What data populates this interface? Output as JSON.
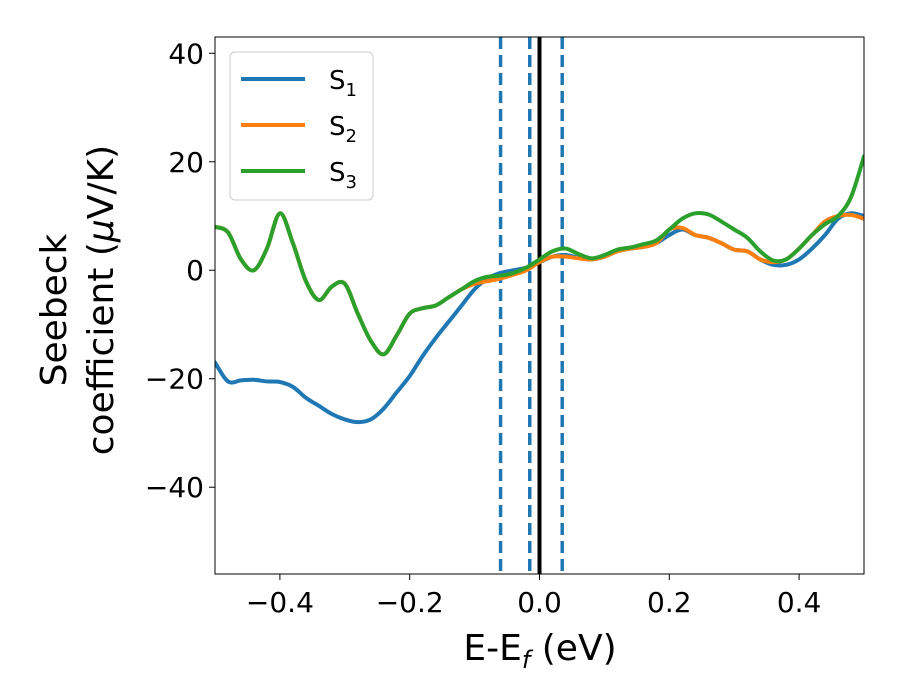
{
  "chart_data": {
    "type": "line",
    "xlabel": {
      "main": "E-E",
      "sub": "f",
      "unit": " (eV)"
    },
    "ylabel": {
      "line1": "Seebeck",
      "line2": "coefficient  (",
      "mu": "μ",
      "unit": "V/K)"
    },
    "xlim": [
      -0.5,
      0.5
    ],
    "ylim": [
      -56,
      43
    ],
    "xticks": [
      -0.4,
      -0.2,
      0.0,
      0.2,
      0.4
    ],
    "xtick_labels": [
      "−0.4",
      "−0.2",
      "0.0",
      "0.2",
      "0.4"
    ],
    "yticks": [
      -40,
      -20,
      0,
      20,
      40
    ],
    "ytick_labels": [
      "−40",
      "−20",
      "0",
      "20",
      "40"
    ],
    "grid": false,
    "legend_position": "upper-left",
    "vlines": [
      {
        "x": 0.0,
        "style": "solid",
        "color": "#000000"
      },
      {
        "x": -0.06,
        "style": "dashed",
        "color": "#1f77b4"
      },
      {
        "x": -0.015,
        "style": "dashed",
        "color": "#1f77b4"
      },
      {
        "x": 0.035,
        "style": "dashed",
        "color": "#1f77b4"
      }
    ],
    "series": [
      {
        "name": "S",
        "sub": "1",
        "color": "#1f77b4",
        "x": [
          -0.5,
          -0.48,
          -0.46,
          -0.44,
          -0.42,
          -0.4,
          -0.38,
          -0.36,
          -0.34,
          -0.32,
          -0.3,
          -0.28,
          -0.26,
          -0.24,
          -0.22,
          -0.2,
          -0.18,
          -0.16,
          -0.14,
          -0.12,
          -0.1,
          -0.08,
          -0.06,
          -0.04,
          -0.02,
          0.0,
          0.02,
          0.04,
          0.06,
          0.08,
          0.1,
          0.12,
          0.14,
          0.16,
          0.18,
          0.2,
          0.22,
          0.24,
          0.26,
          0.28,
          0.3,
          0.32,
          0.34,
          0.36,
          0.38,
          0.4,
          0.42,
          0.44,
          0.46,
          0.48,
          0.5
        ],
        "y": [
          -17,
          -20.5,
          -20.3,
          -20.2,
          -20.5,
          -20.6,
          -21.5,
          -23.5,
          -25,
          -26.5,
          -27.5,
          -28,
          -27.5,
          -25.5,
          -22.5,
          -19.5,
          -15.8,
          -12.5,
          -9.5,
          -6.5,
          -3.5,
          -1.5,
          -0.5,
          0,
          0.5,
          1.5,
          2.5,
          2.8,
          2.3,
          2.0,
          2.5,
          3.5,
          4.0,
          4.3,
          5.0,
          6.5,
          7.5,
          6.5,
          6.0,
          5.0,
          3.8,
          3.5,
          2.0,
          1.0,
          1.0,
          2.0,
          4.0,
          6.5,
          9.5,
          10.5,
          10.0
        ]
      },
      {
        "name": "S",
        "sub": "2",
        "color": "#ff7f0e",
        "x": [
          -0.5,
          -0.48,
          -0.46,
          -0.44,
          -0.42,
          -0.4,
          -0.38,
          -0.36,
          -0.34,
          -0.32,
          -0.3,
          -0.28,
          -0.26,
          -0.24,
          -0.22,
          -0.2,
          -0.18,
          -0.16,
          -0.14,
          -0.12,
          -0.1,
          -0.08,
          -0.06,
          -0.04,
          -0.02,
          0.0,
          0.02,
          0.04,
          0.06,
          0.08,
          0.1,
          0.12,
          0.14,
          0.16,
          0.18,
          0.2,
          0.22,
          0.24,
          0.26,
          0.28,
          0.3,
          0.32,
          0.34,
          0.36,
          0.38,
          0.4,
          0.42,
          0.44,
          0.46,
          0.48,
          0.5
        ],
        "y": [
          8,
          7,
          2,
          0,
          4,
          10.5,
          5,
          -2,
          -5.5,
          -3,
          -2.5,
          -8,
          -13,
          -15.5,
          -12,
          -8,
          -7,
          -6.5,
          -5,
          -3.5,
          -2.5,
          -2,
          -1.5,
          -0.8,
          0,
          1.5,
          2.5,
          2.5,
          2.2,
          2.0,
          2.5,
          3.5,
          4.0,
          4.3,
          5.0,
          7.5,
          7.8,
          6.5,
          6.0,
          5.0,
          3.8,
          3.5,
          2.0,
          1.5,
          2.0,
          4.0,
          6.5,
          9.0,
          10.0,
          10.2,
          9.5
        ]
      },
      {
        "name": "S",
        "sub": "3",
        "color": "#2ca02c",
        "x": [
          -0.5,
          -0.48,
          -0.46,
          -0.44,
          -0.42,
          -0.4,
          -0.38,
          -0.36,
          -0.34,
          -0.32,
          -0.3,
          -0.28,
          -0.26,
          -0.24,
          -0.22,
          -0.2,
          -0.18,
          -0.16,
          -0.14,
          -0.12,
          -0.1,
          -0.08,
          -0.06,
          -0.04,
          -0.02,
          0.0,
          0.02,
          0.04,
          0.06,
          0.08,
          0.1,
          0.12,
          0.14,
          0.16,
          0.18,
          0.2,
          0.22,
          0.24,
          0.26,
          0.28,
          0.3,
          0.32,
          0.34,
          0.36,
          0.38,
          0.4,
          0.42,
          0.44,
          0.46,
          0.48,
          0.5
        ],
        "y": [
          8,
          7,
          2,
          0,
          4,
          10.5,
          5,
          -2,
          -5.5,
          -3,
          -2.5,
          -8,
          -13,
          -15.5,
          -12,
          -8,
          -7,
          -6.5,
          -5,
          -3.5,
          -2.0,
          -1.2,
          -1.0,
          -0.5,
          0.5,
          2.0,
          3.5,
          4.0,
          3.0,
          2.2,
          2.8,
          3.8,
          4.2,
          4.8,
          5.5,
          7.5,
          9.5,
          10.5,
          10.3,
          9.0,
          7.5,
          6.0,
          3.5,
          1.8,
          2.0,
          4.0,
          6.5,
          8.5,
          10.0,
          13.5,
          21.0
        ]
      }
    ]
  }
}
